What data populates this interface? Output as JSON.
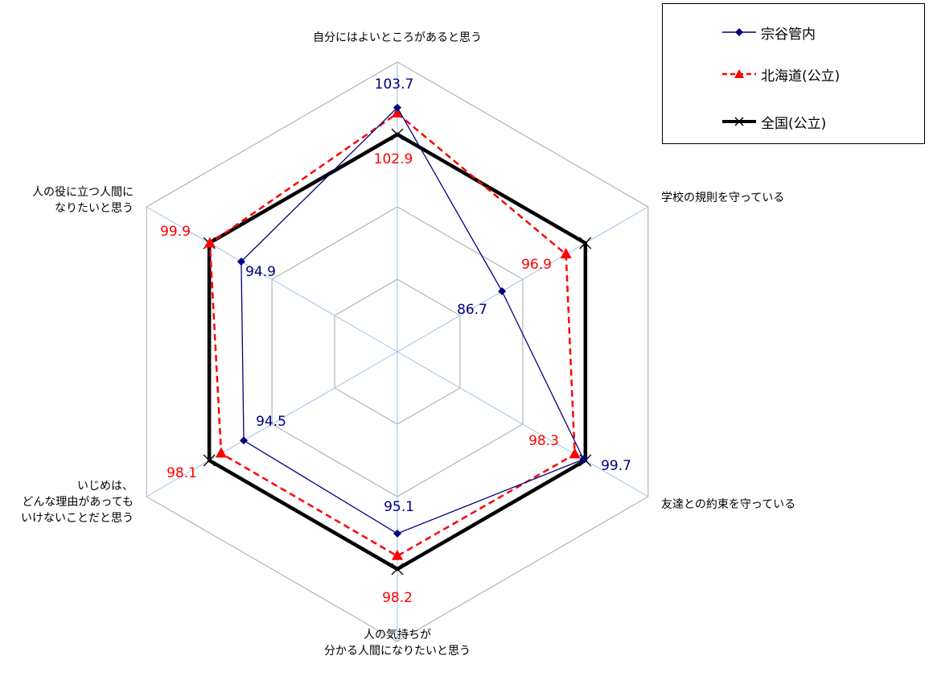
{
  "chart_data": {
    "type": "radar",
    "categories": [
      "自分にはよいところがあると思う",
      "学校の規則を守っている",
      "友達との約束を守っている",
      "人の気持ちが\n分かる人間になりたいと思う",
      "いじめは、\nどんな理由があっても\nいけないことだと思う",
      "人の役に立つ人間に\nなりたいと思う"
    ],
    "series": [
      {
        "name": "宗谷管内",
        "values": [
          103.7,
          86.7,
          99.7,
          95.1,
          94.5,
          94.9
        ],
        "color": "#000080",
        "marker": "diamond",
        "line": "solid-thin"
      },
      {
        "name": "北海道(公立)",
        "values": [
          102.9,
          96.9,
          98.3,
          98.2,
          98.1,
          99.9
        ],
        "color": "#ff0000",
        "marker": "triangle",
        "line": "dashed"
      },
      {
        "name": "全国(公立)",
        "values": [
          100,
          100,
          100,
          100,
          100,
          100
        ],
        "color": "#000000",
        "marker": "x",
        "line": "solid-thick"
      }
    ],
    "value_labels": [
      {
        "series": 0,
        "axis": 0,
        "text": "103.7"
      },
      {
        "series": 1,
        "axis": 0,
        "text": "102.9"
      },
      {
        "series": 1,
        "axis": 1,
        "text": "96.9"
      },
      {
        "series": 0,
        "axis": 1,
        "text": "86.7"
      },
      {
        "series": 1,
        "axis": 2,
        "text": "98.3"
      },
      {
        "series": 0,
        "axis": 2,
        "text": "99.7"
      },
      {
        "series": 0,
        "axis": 3,
        "text": "95.1"
      },
      {
        "series": 1,
        "axis": 3,
        "text": "98.2"
      },
      {
        "series": 0,
        "axis": 4,
        "text": "94.5"
      },
      {
        "series": 1,
        "axis": 4,
        "text": "98.1"
      },
      {
        "series": 0,
        "axis": 5,
        "text": "94.9"
      },
      {
        "series": 1,
        "axis": 5,
        "text": "99.9"
      }
    ],
    "rlim": [
      70,
      110
    ],
    "ticks": [
      70,
      80,
      90,
      100,
      110
    ],
    "grid": true,
    "legend_position": "top-right"
  }
}
